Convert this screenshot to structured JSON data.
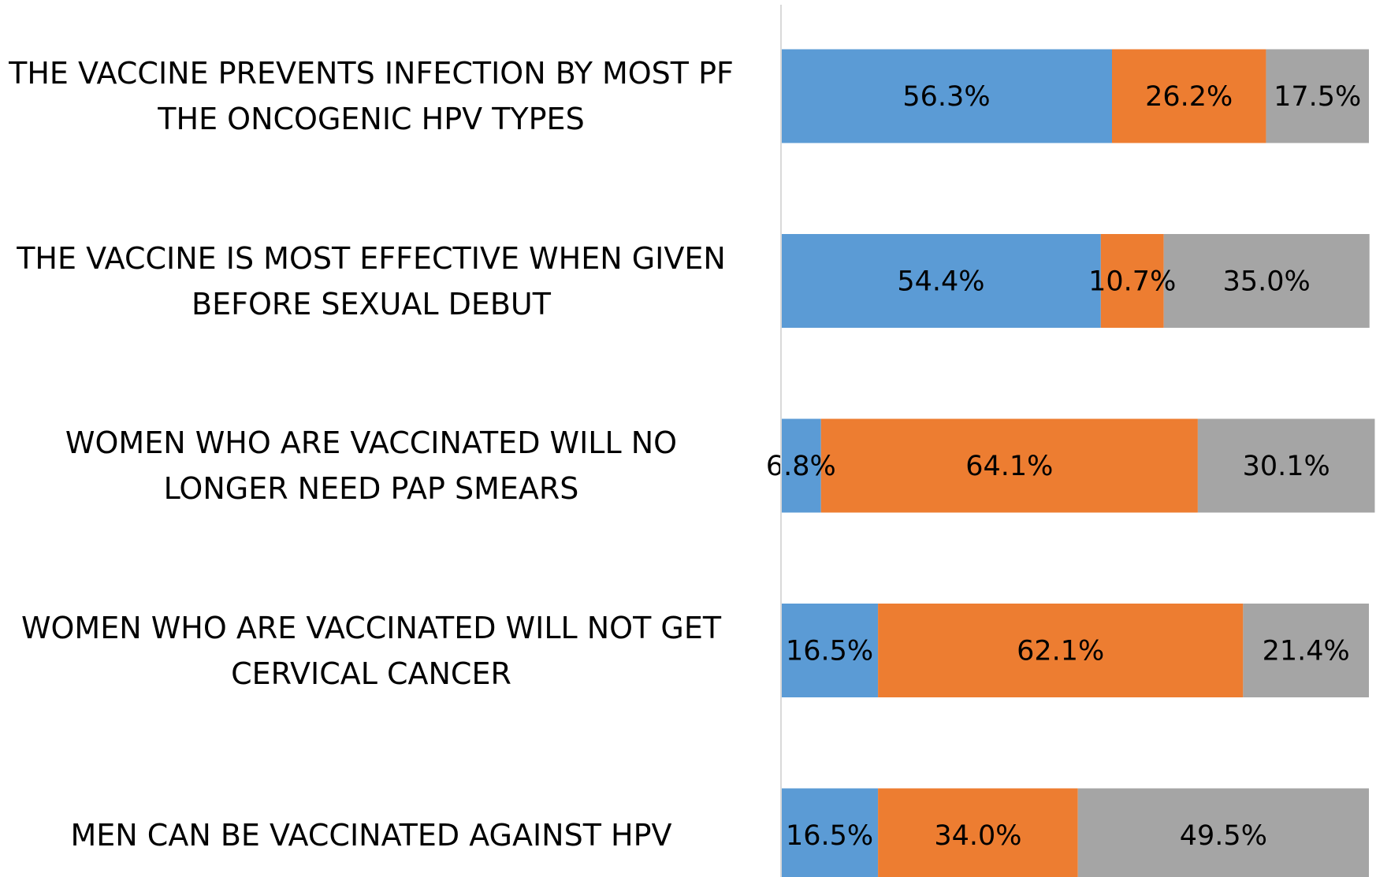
{
  "chart_data": {
    "type": "stacked-bar-horizontal",
    "categories": [
      "THE VACCINE PREVENTS INFECTION BY MOST PF THE ONCOGENIC HPV TYPES",
      "THE VACCINE IS MOST EFFECTIVE WHEN GIVEN BEFORE SEXUAL DEBUT",
      "WOMEN WHO ARE VACCINATED WILL NO LONGER NEED PAP SMEARS",
      "WOMEN WHO ARE VACCINATED WILL NOT GET CERVICAL CANCER",
      "MEN CAN BE VACCINATED AGAINST HPV"
    ],
    "series": [
      {
        "color": "#5b9bd5",
        "values": [
          56.3,
          54.4,
          6.8,
          16.5,
          16.5
        ],
        "value_labels": [
          "56.3%",
          "54.4%",
          "6.8%",
          "16.5%",
          "16.5%"
        ]
      },
      {
        "color": "#ed7d31",
        "values": [
          26.2,
          10.7,
          64.1,
          62.1,
          34.0
        ],
        "value_labels": [
          "26.2%",
          "10.7%",
          "64.1%",
          "62.1%",
          "34.0%"
        ]
      },
      {
        "color": "#a5a5a5",
        "values": [
          17.5,
          35.0,
          30.1,
          21.4,
          49.5
        ],
        "value_labels": [
          "17.5%",
          "35.0%",
          "30.1%",
          "21.4%",
          "49.5%"
        ]
      }
    ],
    "xlim": [
      0,
      100
    ]
  }
}
